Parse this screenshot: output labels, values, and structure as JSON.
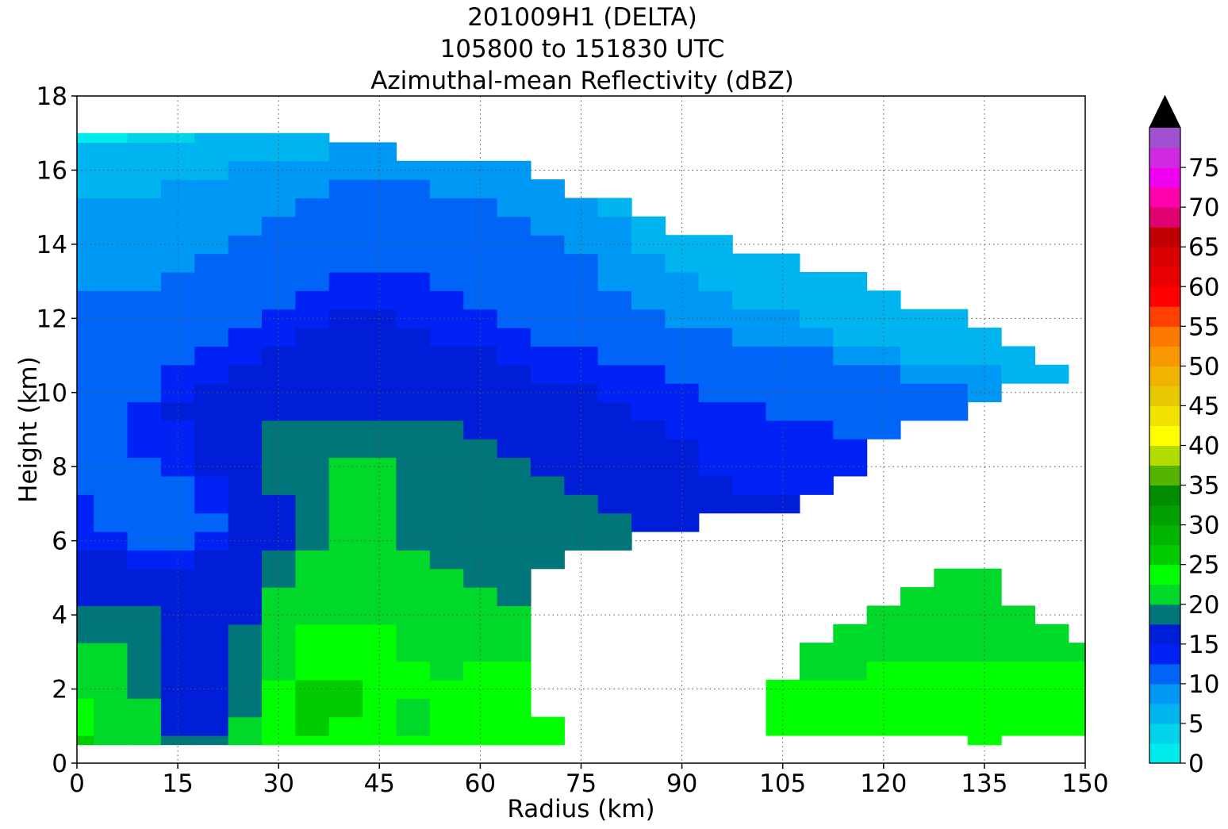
{
  "figure": {
    "title_lines": [
      "201009H1 (DELTA)",
      "105800 to 151830 UTC",
      "Azimuthal-mean Reflectivity (dBZ)"
    ]
  },
  "chart_data": {
    "type": "heatmap",
    "subtype": "filled-contour",
    "xlabel": "Radius (km)",
    "ylabel": "Height (km)",
    "xlim": [
      0,
      150
    ],
    "ylim": [
      0,
      18
    ],
    "xticks": [
      0,
      15,
      30,
      45,
      60,
      75,
      90,
      105,
      120,
      135,
      150
    ],
    "yticks": [
      0,
      2,
      4,
      6,
      8,
      10,
      12,
      14,
      16,
      18
    ],
    "grid": true,
    "grid_style": "dotted",
    "colorbar": {
      "label_ticks": [
        0,
        5,
        10,
        15,
        20,
        25,
        30,
        35,
        40,
        45,
        50,
        55,
        60,
        65,
        70,
        75
      ],
      "extend": "max",
      "levels": [
        0,
        2.5,
        5,
        7.5,
        10,
        12.5,
        15,
        17.5,
        20,
        22.5,
        25,
        27.5,
        30,
        32.5,
        35,
        37.5,
        40,
        42.5,
        45,
        47.5,
        50,
        52.5,
        55,
        57.5,
        60,
        62.5,
        65,
        67.5,
        70,
        72.5,
        75,
        77.5,
        80
      ],
      "colors": [
        "#00ecec",
        "#00d3ea",
        "#00b4f0",
        "#0098f5",
        "#0064f6",
        "#0022f5",
        "#001ed8",
        "#00757a",
        "#00d92a",
        "#00ff00",
        "#00cc00",
        "#00b400",
        "#00a000",
        "#008c00",
        "#54b400",
        "#b4dc00",
        "#ffff00",
        "#f2e200",
        "#e6c800",
        "#f0b400",
        "#f79800",
        "#ff7800",
        "#ff4000",
        "#ff0000",
        "#e80000",
        "#d80000",
        "#c00000",
        "#e0006f",
        "#ff00aa",
        "#f000f0",
        "#d02ae0",
        "#a050d0",
        "#7a3e9e",
        "#3c1e50"
      ],
      "extend_color": "#000000"
    },
    "notes": "Reflectivity (dBZ) values by radius (km) and height (km), read approximately from the filled contours; null = no data.",
    "x_km": [
      0,
      5,
      10,
      15,
      20,
      25,
      30,
      35,
      40,
      45,
      50,
      55,
      60,
      65,
      70,
      75,
      80,
      85,
      90,
      95,
      100,
      105,
      110,
      115,
      120,
      125,
      130,
      135,
      140,
      145,
      150
    ],
    "heights_km": [
      0.5,
      1,
      1.5,
      2,
      2.5,
      3,
      3.5,
      4,
      4.5,
      5,
      5.5,
      6,
      6.5,
      7,
      7.5,
      8,
      8.5,
      9,
      9.5,
      10,
      10.5,
      11,
      11.5,
      12,
      12.5,
      13,
      13.5,
      14,
      14.5,
      15,
      15.5,
      16,
      16.5,
      17
    ],
    "values": [
      [
        25,
        22,
        21,
        19,
        19,
        21,
        23,
        23,
        23,
        23,
        23,
        23,
        23,
        23,
        23,
        null,
        null,
        null,
        null,
        null,
        null,
        null,
        null,
        null,
        null,
        null,
        null,
        23,
        null,
        null,
        null
      ],
      [
        24,
        21,
        20,
        17,
        17,
        20,
        23,
        25,
        24,
        23,
        22,
        23,
        23,
        23,
        23,
        null,
        null,
        null,
        null,
        null,
        null,
        23,
        23,
        23,
        23,
        23,
        23,
        23,
        23,
        23,
        23
      ],
      [
        23,
        21,
        20,
        16,
        16,
        19,
        24,
        26,
        25,
        23,
        22,
        23,
        23,
        23,
        null,
        null,
        null,
        null,
        null,
        null,
        null,
        23,
        23,
        23,
        23,
        23,
        23,
        23,
        23,
        24,
        23
      ],
      [
        22,
        21,
        19,
        16,
        16,
        18,
        23,
        25,
        25,
        24,
        23,
        23,
        23,
        23,
        null,
        null,
        null,
        null,
        null,
        null,
        null,
        23,
        23,
        23,
        23,
        23,
        23,
        23,
        23,
        24,
        23
      ],
      [
        21,
        20,
        18,
        16,
        16,
        18,
        22,
        24,
        24,
        24,
        23,
        22,
        23,
        23,
        null,
        null,
        null,
        null,
        null,
        null,
        null,
        null,
        22,
        22,
        23,
        23,
        23,
        23,
        23,
        23,
        23
      ],
      [
        20,
        20,
        18,
        16,
        16,
        18,
        22,
        23,
        23,
        23,
        22,
        22,
        22,
        22,
        null,
        null,
        null,
        null,
        null,
        null,
        null,
        null,
        22,
        22,
        22,
        22,
        22,
        22,
        22,
        22,
        22
      ],
      [
        19,
        19,
        18,
        16,
        16,
        18,
        21,
        23,
        23,
        23,
        22,
        22,
        21,
        21,
        null,
        null,
        null,
        null,
        null,
        null,
        null,
        null,
        null,
        21,
        22,
        22,
        22,
        22,
        22,
        22,
        null
      ],
      [
        18,
        18,
        18,
        16,
        16,
        17,
        20,
        22,
        22,
        22,
        21,
        21,
        20,
        20,
        null,
        null,
        null,
        null,
        null,
        null,
        null,
        null,
        null,
        null,
        21,
        21,
        21,
        21,
        21,
        null,
        null
      ],
      [
        17,
        17,
        17,
        16,
        16,
        17,
        20,
        21,
        22,
        21,
        21,
        20,
        20,
        19,
        null,
        null,
        null,
        null,
        null,
        null,
        null,
        null,
        null,
        null,
        null,
        20,
        21,
        21,
        null,
        null,
        null
      ],
      [
        16,
        16,
        16,
        16,
        16,
        17,
        19,
        21,
        21,
        21,
        20,
        20,
        19,
        19,
        null,
        null,
        null,
        null,
        null,
        null,
        null,
        null,
        null,
        null,
        null,
        null,
        20,
        21,
        null,
        null,
        null
      ],
      [
        15,
        15,
        14,
        13,
        15,
        16,
        18,
        20,
        21,
        20,
        20,
        19,
        19,
        19,
        19,
        null,
        null,
        null,
        null,
        null,
        null,
        null,
        null,
        null,
        null,
        null,
        null,
        null,
        null,
        null,
        null
      ],
      [
        14,
        13,
        12,
        12,
        13,
        15,
        17,
        19,
        20,
        20,
        19,
        19,
        19,
        19,
        19,
        19,
        19,
        null,
        null,
        null,
        null,
        null,
        null,
        null,
        null,
        null,
        null,
        null,
        null,
        null,
        null
      ],
      [
        13,
        11,
        11,
        12,
        12,
        15,
        17,
        19,
        20,
        20,
        19,
        19,
        19,
        19,
        19,
        19,
        18,
        16,
        16,
        null,
        null,
        null,
        null,
        null,
        null,
        null,
        null,
        null,
        null,
        null,
        null
      ],
      [
        13,
        11,
        11,
        12,
        13,
        15,
        17,
        19,
        20,
        20,
        19,
        19,
        19,
        19,
        19,
        18,
        16,
        16,
        16,
        16,
        16,
        16,
        null,
        null,
        null,
        null,
        null,
        null,
        null,
        null,
        null
      ],
      [
        12,
        11,
        11,
        12,
        14,
        16,
        18,
        19,
        20,
        20,
        19,
        19,
        19,
        19,
        18,
        17,
        16,
        16,
        16,
        15,
        14,
        13,
        14,
        null,
        null,
        null,
        null,
        null,
        null,
        null,
        null
      ],
      [
        12,
        12,
        12,
        13,
        15,
        16,
        18,
        19,
        20,
        20,
        19,
        19,
        19,
        18,
        17,
        16,
        16,
        16,
        15,
        14,
        13,
        13,
        13,
        13,
        null,
        null,
        null,
        null,
        null,
        null,
        null
      ],
      [
        11,
        12,
        13,
        14,
        16,
        17,
        18,
        18,
        19,
        19,
        19,
        19,
        18,
        17,
        16,
        16,
        16,
        16,
        15,
        14,
        13,
        13,
        13,
        13,
        null,
        null,
        null,
        null,
        null,
        null,
        null
      ],
      [
        11,
        12,
        13,
        14,
        16,
        17,
        18,
        18,
        18,
        18,
        18,
        18,
        17,
        16,
        16,
        16,
        16,
        15,
        14,
        13,
        13,
        13,
        13,
        12,
        12,
        null,
        null,
        null,
        null,
        null,
        null
      ],
      [
        11,
        12,
        13,
        15,
        16,
        17,
        17,
        17,
        17,
        17,
        17,
        17,
        16,
        16,
        16,
        16,
        15,
        14,
        13,
        13,
        13,
        12,
        12,
        12,
        12,
        11,
        11,
        null,
        null,
        null,
        null
      ],
      [
        11,
        11,
        12,
        14,
        15,
        16,
        16,
        16,
        17,
        17,
        16,
        16,
        16,
        16,
        15,
        15,
        14,
        13,
        13,
        12,
        12,
        12,
        12,
        11,
        11,
        11,
        10,
        9,
        null,
        null,
        null
      ],
      [
        10,
        11,
        12,
        13,
        14,
        15,
        16,
        16,
        16,
        16,
        16,
        16,
        15,
        15,
        14,
        14,
        13,
        13,
        12,
        12,
        11,
        11,
        11,
        11,
        10,
        9,
        8,
        8,
        7,
        7,
        null
      ],
      [
        10,
        10,
        11,
        12,
        13,
        14,
        15,
        15,
        16,
        16,
        16,
        15,
        15,
        14,
        13,
        13,
        12,
        12,
        11,
        11,
        10,
        10,
        10,
        9,
        8,
        7,
        7,
        6,
        6,
        null,
        null
      ],
      [
        10,
        10,
        11,
        11,
        12,
        13,
        14,
        15,
        16,
        16,
        15,
        14,
        14,
        13,
        12,
        12,
        11,
        11,
        10,
        10,
        9,
        9,
        8,
        7,
        7,
        6,
        6,
        6,
        null,
        null,
        null
      ],
      [
        10,
        10,
        10,
        11,
        11,
        12,
        13,
        14,
        15,
        15,
        14,
        13,
        13,
        12,
        12,
        11,
        11,
        10,
        9,
        9,
        8,
        8,
        7,
        7,
        6,
        6,
        6,
        null,
        null,
        null,
        null
      ],
      [
        10,
        10,
        10,
        10,
        11,
        11,
        12,
        13,
        14,
        14,
        13,
        13,
        12,
        12,
        11,
        11,
        10,
        9,
        9,
        8,
        7,
        7,
        7,
        6,
        6,
        null,
        null,
        null,
        null,
        null,
        null
      ],
      [
        9,
        9,
        9,
        10,
        10,
        11,
        11,
        12,
        13,
        13,
        13,
        12,
        12,
        11,
        11,
        10,
        9,
        9,
        8,
        7,
        7,
        6,
        6,
        6,
        null,
        null,
        null,
        null,
        null,
        null,
        null
      ],
      [
        9,
        9,
        9,
        9,
        10,
        10,
        11,
        11,
        12,
        12,
        12,
        12,
        11,
        11,
        10,
        10,
        9,
        8,
        7,
        7,
        6,
        6,
        null,
        null,
        null,
        null,
        null,
        null,
        null,
        null,
        null
      ],
      [
        9,
        9,
        9,
        9,
        9,
        10,
        10,
        11,
        11,
        12,
        12,
        11,
        11,
        10,
        10,
        9,
        8,
        7,
        7,
        6,
        null,
        null,
        null,
        null,
        null,
        null,
        null,
        null,
        null,
        null,
        null
      ],
      [
        8,
        8,
        9,
        9,
        9,
        9,
        10,
        10,
        11,
        11,
        11,
        11,
        10,
        10,
        9,
        8,
        8,
        7,
        null,
        null,
        null,
        null,
        null,
        null,
        null,
        null,
        null,
        null,
        null,
        null,
        null
      ],
      [
        8,
        8,
        8,
        8,
        9,
        9,
        9,
        10,
        10,
        10,
        10,
        10,
        10,
        9,
        9,
        8,
        7,
        null,
        null,
        null,
        null,
        null,
        null,
        null,
        null,
        null,
        null,
        null,
        null,
        null,
        null
      ],
      [
        7,
        7,
        7,
        8,
        8,
        8,
        9,
        9,
        10,
        10,
        10,
        9,
        9,
        8,
        8,
        null,
        null,
        null,
        null,
        null,
        null,
        null,
        null,
        null,
        null,
        null,
        null,
        null,
        null,
        null,
        null
      ],
      [
        6,
        6,
        7,
        7,
        7,
        8,
        8,
        8,
        9,
        9,
        9,
        9,
        8,
        8,
        null,
        null,
        null,
        null,
        null,
        null,
        null,
        null,
        null,
        null,
        null,
        null,
        null,
        null,
        null,
        null,
        null
      ],
      [
        5,
        5,
        5,
        6,
        6,
        7,
        7,
        7,
        8,
        8,
        null,
        null,
        null,
        null,
        null,
        null,
        null,
        null,
        null,
        null,
        null,
        null,
        null,
        null,
        null,
        null,
        null,
        null,
        null,
        null,
        null
      ],
      [
        1,
        2,
        3,
        4,
        5,
        5,
        6,
        6,
        null,
        null,
        null,
        null,
        null,
        null,
        null,
        null,
        null,
        null,
        null,
        null,
        null,
        null,
        null,
        null,
        null,
        null,
        null,
        null,
        null,
        null,
        null
      ]
    ]
  }
}
